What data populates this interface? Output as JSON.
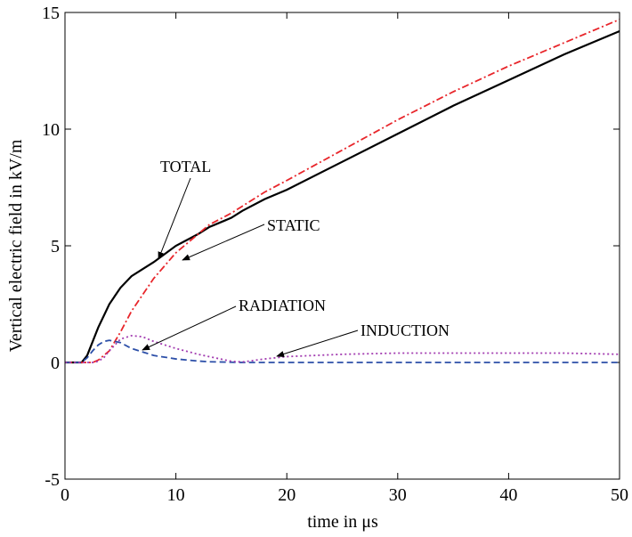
{
  "chart_data": {
    "type": "line",
    "x_label": "time  in  μs",
    "y_label": "Vertical electric field  in  kV/m",
    "x": [
      0,
      1,
      1.5,
      2,
      2.5,
      3,
      3.5,
      4,
      5,
      6,
      7,
      8,
      10,
      12,
      13,
      15,
      16,
      18,
      20,
      25,
      30,
      35,
      40,
      45,
      50
    ],
    "series": [
      {
        "name": "TOTAL",
        "color": "#000000",
        "dash": "solid",
        "values": [
          0,
          0,
          0,
          0.3,
          0.9,
          1.5,
          2.0,
          2.5,
          3.2,
          3.7,
          4.0,
          4.3,
          5.0,
          5.5,
          5.8,
          6.2,
          6.5,
          7.0,
          7.4,
          8.6,
          9.8,
          11.0,
          12.1,
          13.2,
          14.2
        ]
      },
      {
        "name": "STATIC",
        "color": "#e8262b",
        "dash": "dashdot",
        "values": [
          0,
          0,
          0,
          0,
          0,
          0.1,
          0.3,
          0.5,
          1.3,
          2.2,
          2.9,
          3.6,
          4.7,
          5.5,
          5.9,
          6.4,
          6.7,
          7.3,
          7.8,
          9.1,
          10.4,
          11.6,
          12.7,
          13.7,
          14.7
        ]
      },
      {
        "name": "RADIATION",
        "color": "#2c4fa8",
        "dash": "dashed",
        "values": [
          0,
          0,
          0,
          0.2,
          0.5,
          0.75,
          0.9,
          0.95,
          0.85,
          0.6,
          0.45,
          0.3,
          0.15,
          0.06,
          0.03,
          0.01,
          0,
          0,
          0,
          0,
          0,
          0,
          0,
          0,
          0
        ]
      },
      {
        "name": "INDUCTION",
        "color": "#a23bb0",
        "dash": "dotted",
        "values": [
          0,
          0,
          0,
          0,
          0,
          0.05,
          0.2,
          0.5,
          1.0,
          1.15,
          1.1,
          0.9,
          0.6,
          0.35,
          0.25,
          0.05,
          0.02,
          0.15,
          0.25,
          0.35,
          0.4,
          0.4,
          0.4,
          0.4,
          0.35
        ]
      }
    ],
    "annotations": [
      "TOTAL",
      "STATIC",
      "RADIATION",
      "INDUCTION"
    ],
    "xlim": [
      0,
      50
    ],
    "xticks": [
      0,
      10,
      20,
      30,
      40,
      50
    ],
    "ylim": [
      -5,
      15
    ],
    "yticks": [
      -5,
      0,
      5,
      10,
      15
    ],
    "grid": false
  }
}
